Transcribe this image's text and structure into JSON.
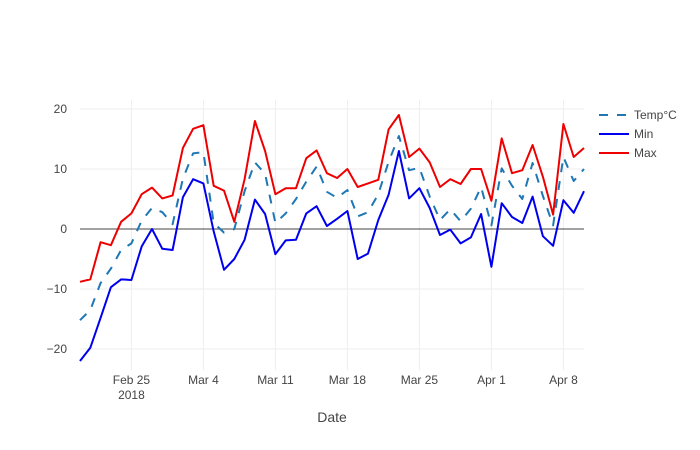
{
  "chart_data": {
    "type": "line",
    "xlabel": "Date",
    "ylabel": "",
    "ylim": [
      -23.5,
      21.5
    ],
    "xlim": [
      "2018-02-20",
      "2018-04-10"
    ],
    "x": [
      "2018-02-20",
      "2018-02-21",
      "2018-02-22",
      "2018-02-23",
      "2018-02-24",
      "2018-02-25",
      "2018-02-26",
      "2018-02-27",
      "2018-02-28",
      "2018-03-01",
      "2018-03-02",
      "2018-03-03",
      "2018-03-04",
      "2018-03-05",
      "2018-03-06",
      "2018-03-07",
      "2018-03-08",
      "2018-03-09",
      "2018-03-10",
      "2018-03-11",
      "2018-03-12",
      "2018-03-13",
      "2018-03-14",
      "2018-03-15",
      "2018-03-16",
      "2018-03-17",
      "2018-03-18",
      "2018-03-19",
      "2018-03-20",
      "2018-03-21",
      "2018-03-22",
      "2018-03-23",
      "2018-03-24",
      "2018-03-25",
      "2018-03-26",
      "2018-03-27",
      "2018-03-28",
      "2018-03-29",
      "2018-03-30",
      "2018-03-31",
      "2018-04-01",
      "2018-04-02",
      "2018-04-03",
      "2018-04-04",
      "2018-04-05",
      "2018-04-06",
      "2018-04-07",
      "2018-04-08",
      "2018-04-09",
      "2018-04-10"
    ],
    "series": [
      {
        "name": "Temp°C",
        "color": "#1f77b4",
        "dash": "dash",
        "values": [
          -15.2,
          -13.5,
          -9,
          -6.6,
          -3.5,
          -2.4,
          1.4,
          3.5,
          2.8,
          0.8,
          8.4,
          12.6,
          12.8,
          1,
          -0.6,
          0,
          6.3,
          11.1,
          9.2,
          1,
          2.6,
          5,
          7.9,
          10.4,
          6.2,
          5.2,
          6.5,
          2.1,
          2.8,
          5.8,
          11.2,
          15.5,
          9.8,
          10.2,
          5.4,
          1.5,
          3.3,
          1.3,
          3.4,
          7,
          0.6,
          10.1,
          7.2,
          5,
          11,
          5.5,
          0.6,
          12,
          8,
          10
        ]
      },
      {
        "name": "Min",
        "color": "#0000ee",
        "dash": "solid",
        "values": [
          -22,
          -19.8,
          -14.8,
          -9.7,
          -8.4,
          -8.5,
          -2.9,
          0,
          -3.3,
          -3.5,
          5.3,
          8.3,
          7.6,
          -0.4,
          -6.8,
          -5,
          -1.8,
          4.9,
          2.5,
          -4.2,
          -1.9,
          -1.8,
          2.6,
          3.8,
          0.5,
          1.7,
          3,
          -5,
          -4.1,
          1.5,
          5.7,
          13,
          5.1,
          6.8,
          3.5,
          -1,
          -0.1,
          -2.4,
          -1.4,
          2.5,
          -6.3,
          4.3,
          2,
          1,
          5.4,
          -1.2,
          -2.8,
          4.8,
          2.7,
          6.3
        ]
      },
      {
        "name": "Max",
        "color": "#ee0000",
        "dash": "solid",
        "values": [
          -8.8,
          -8.4,
          -2.2,
          -2.7,
          1.2,
          2.6,
          5.8,
          6.9,
          5.1,
          5.6,
          13.5,
          16.7,
          17.3,
          7.2,
          6.4,
          1.2,
          8.3,
          18,
          13,
          5.8,
          6.8,
          6.8,
          11.8,
          13.1,
          9.3,
          8.5,
          10,
          7,
          7.6,
          8.2,
          16.6,
          19,
          12,
          13.4,
          11.1,
          7,
          8.3,
          7.5,
          10,
          10,
          4.7,
          15.1,
          9.3,
          9.8,
          14,
          8.7,
          2.4,
          17.5,
          12,
          13.5
        ]
      }
    ],
    "xticks": [
      {
        "date": "2018-02-25",
        "label": "Feb 25",
        "sublabel": "2018"
      },
      {
        "date": "2018-03-04",
        "label": "Mar 4",
        "sublabel": ""
      },
      {
        "date": "2018-03-11",
        "label": "Mar 11",
        "sublabel": ""
      },
      {
        "date": "2018-03-18",
        "label": "Mar 18",
        "sublabel": ""
      },
      {
        "date": "2018-03-25",
        "label": "Mar 25",
        "sublabel": ""
      },
      {
        "date": "2018-04-01",
        "label": "Apr 1",
        "sublabel": ""
      },
      {
        "date": "2018-04-08",
        "label": "Apr 8",
        "sublabel": ""
      }
    ],
    "yticks": [
      -20,
      -10,
      0,
      10,
      20
    ],
    "ytick_labels": [
      "−20",
      "−10",
      "0",
      "10",
      "20"
    ],
    "grid": true,
    "legend_position": "top-right"
  }
}
